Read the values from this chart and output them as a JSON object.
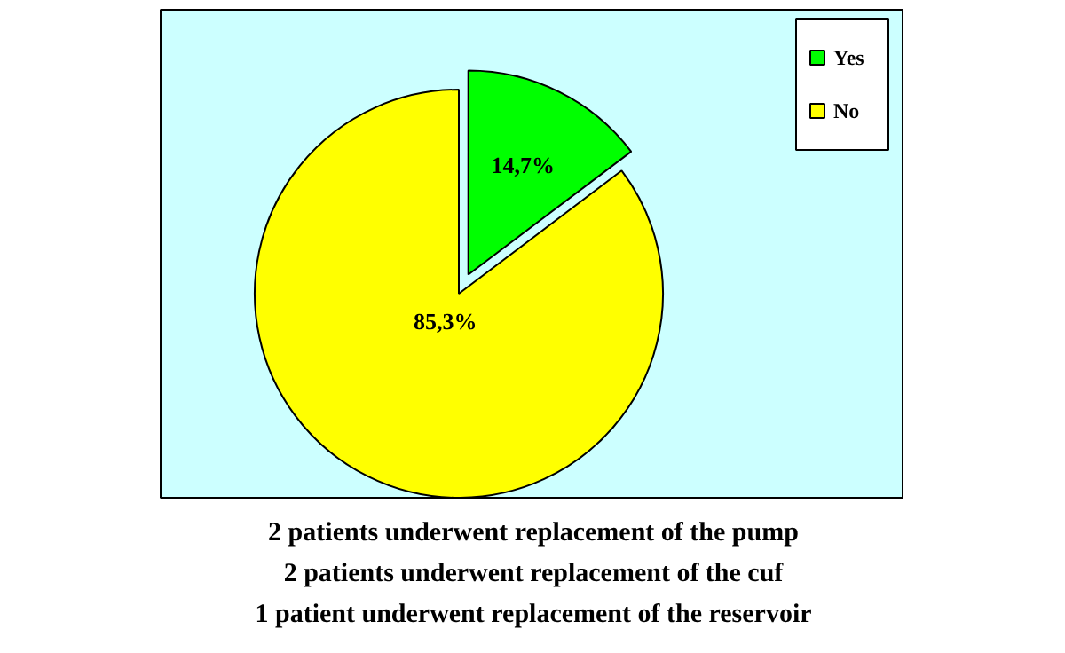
{
  "chart_data": {
    "type": "pie",
    "categories": [
      "Yes",
      "No"
    ],
    "values": [
      14.7,
      85.3
    ],
    "colors": [
      "#00ff00",
      "#ffff00"
    ],
    "value_labels": [
      "14,7%",
      "85,3%"
    ],
    "legend": "top right",
    "annotations": [
      "2 patients underwent replacement of the pump",
      "2 patients underwent replacement of the cuf",
      "1 patient underwent replacement of the reservoir"
    ]
  }
}
